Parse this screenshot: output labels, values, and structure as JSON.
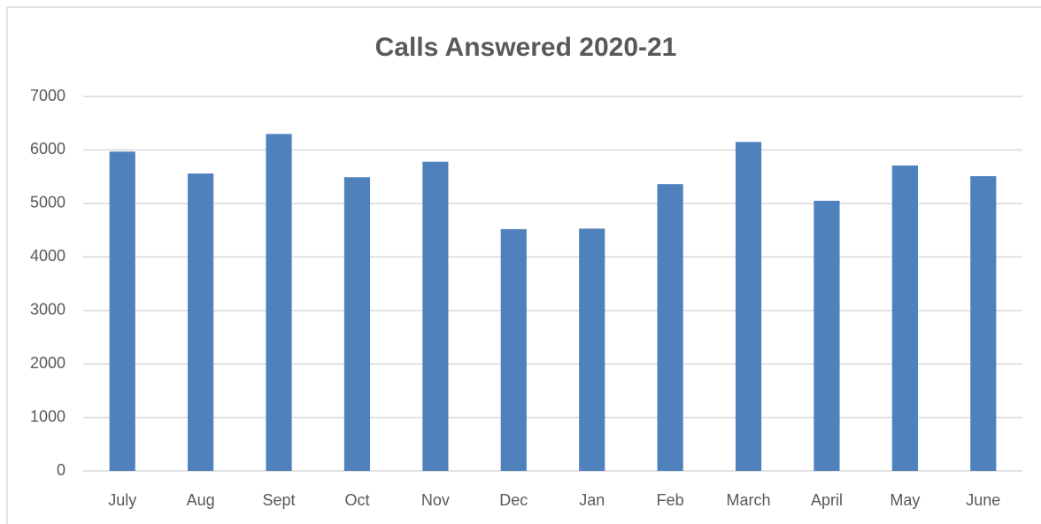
{
  "chart_data": {
    "type": "bar",
    "title": "Calls Answered 2020-21",
    "categories": [
      "July",
      "Aug",
      "Sept",
      "Oct",
      "Nov",
      "Dec",
      "Jan",
      "Feb",
      "March",
      "April",
      "May",
      "June"
    ],
    "values": [
      5970,
      5560,
      6300,
      5490,
      5780,
      4520,
      4530,
      5360,
      6150,
      5050,
      5710,
      5510
    ],
    "color": "#4f81bd",
    "ylim": [
      0,
      7000
    ],
    "yticks": [
      0,
      1000,
      2000,
      3000,
      4000,
      5000,
      6000,
      7000
    ],
    "grid": true
  }
}
